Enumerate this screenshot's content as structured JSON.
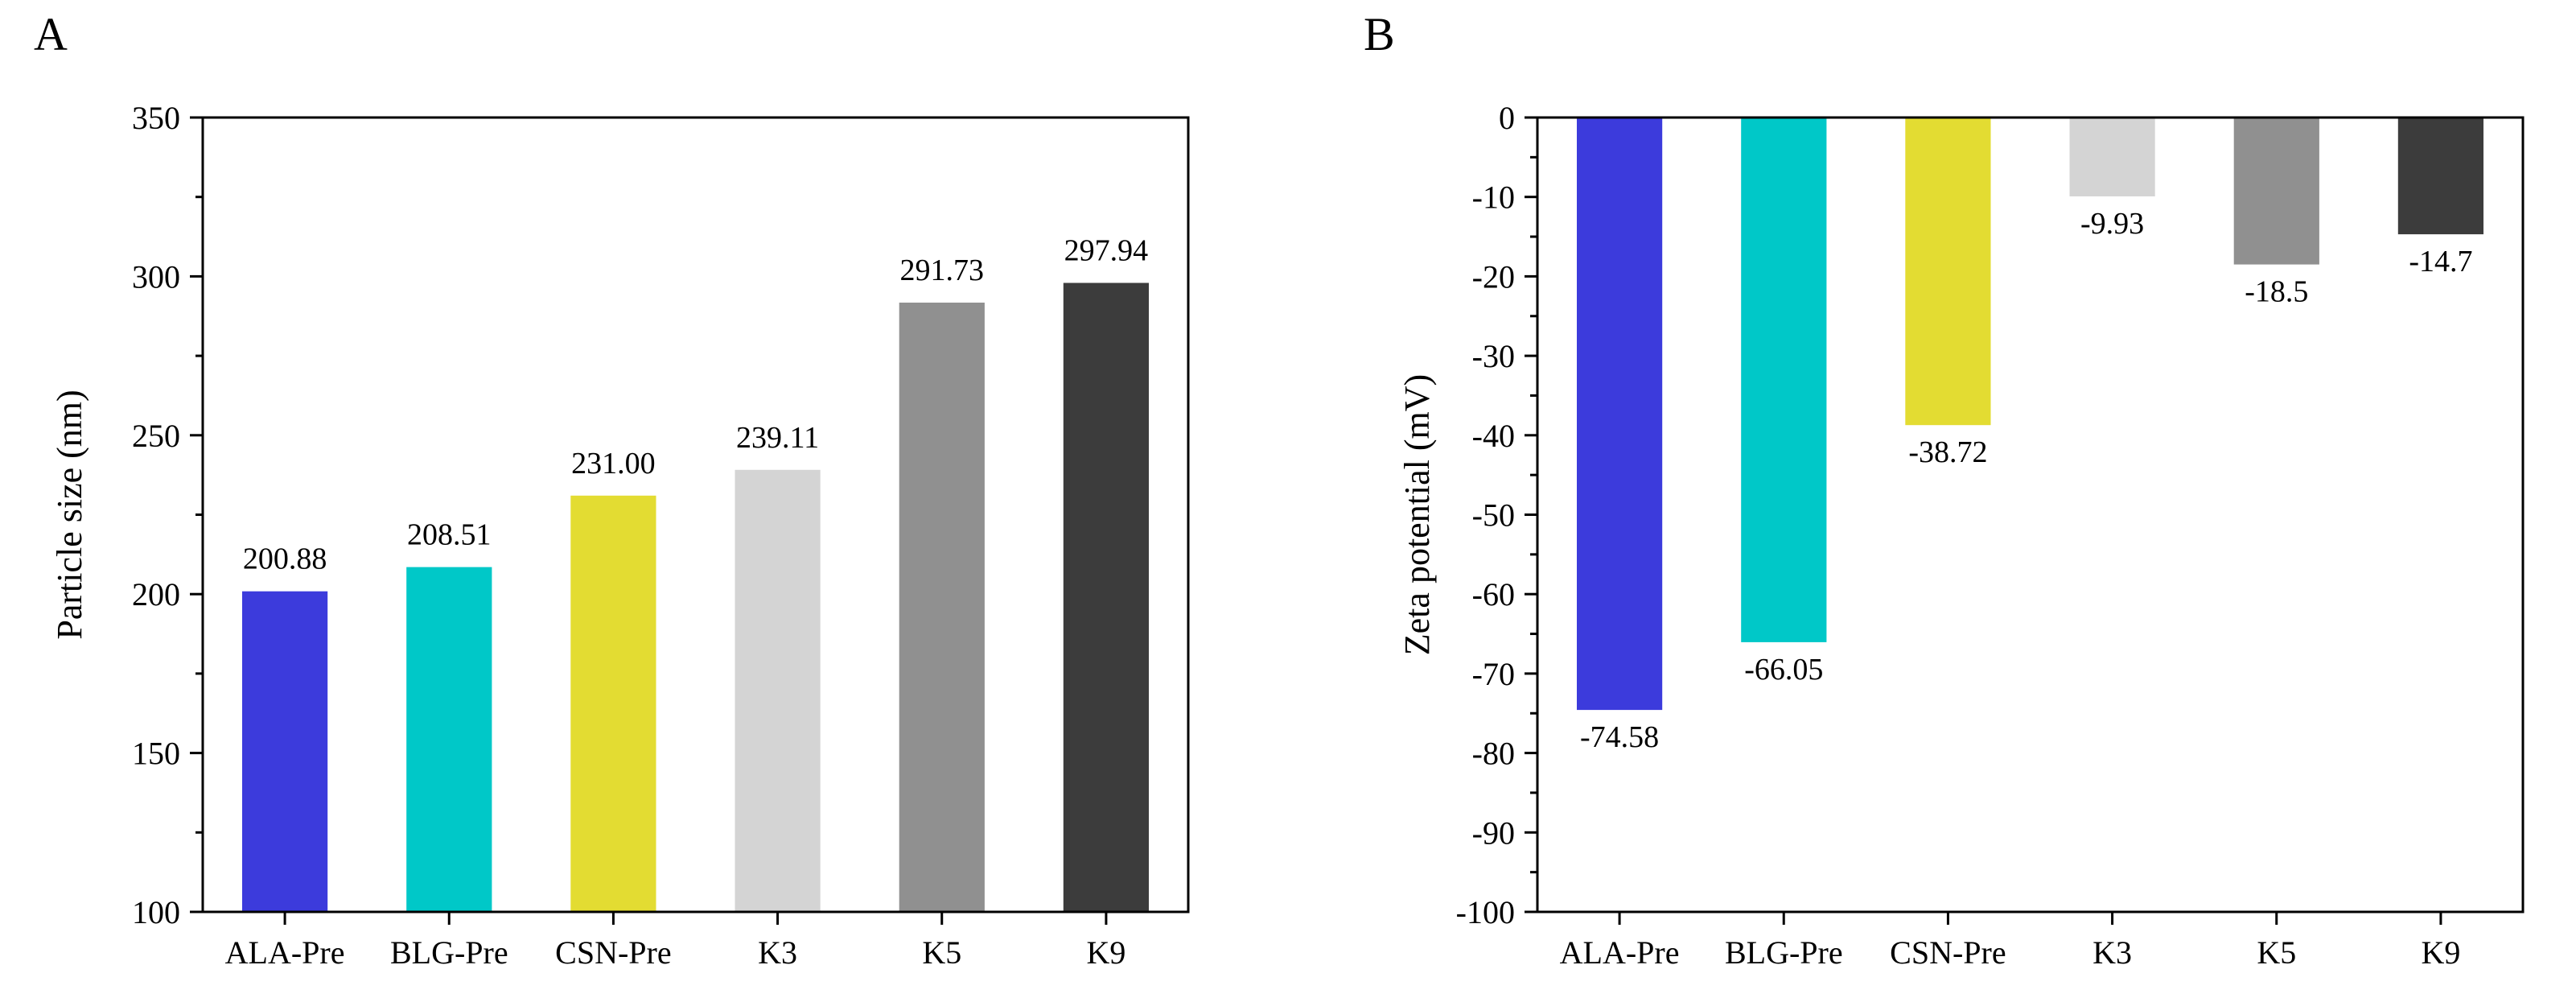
{
  "chart_data": [
    {
      "panel": "A",
      "type": "bar",
      "title": "",
      "xlabel": "",
      "ylabel": "Particle size (nm)",
      "ylim": [
        100,
        350
      ],
      "yticks": [
        100,
        150,
        200,
        250,
        300,
        350
      ],
      "categories": [
        "ALA-Pre",
        "BLG-Pre",
        "CSN-Pre",
        "K3",
        "K5",
        "K9"
      ],
      "values": [
        200.88,
        208.51,
        231.0,
        239.11,
        291.73,
        297.94
      ],
      "data_labels": [
        "200.88",
        "208.51",
        "231.00",
        "239.11",
        "291.73",
        "297.94"
      ],
      "colors": [
        "#3c3bdc",
        "#00c8c8",
        "#e3dc32",
        "#d4d4d4",
        "#909090",
        "#3c3c3c"
      ],
      "grid": false,
      "legend": "none"
    },
    {
      "panel": "B",
      "type": "bar",
      "title": "",
      "xlabel": "",
      "ylabel": "Zeta potential (mV)",
      "ylim": [
        -100,
        0
      ],
      "yticks": [
        0,
        -10,
        -20,
        -30,
        -40,
        -50,
        -60,
        -70,
        -80,
        -90,
        -100
      ],
      "categories": [
        "ALA-Pre",
        "BLG-Pre",
        "CSN-Pre",
        "K3",
        "K5",
        "K9"
      ],
      "values": [
        -74.58,
        -66.05,
        -38.72,
        -9.93,
        -18.5,
        -14.7
      ],
      "data_labels": [
        "-74.58",
        "-66.05",
        "-38.72",
        "-9.93",
        "-18.5",
        "-14.7"
      ],
      "colors": [
        "#3c3bdc",
        "#00c8c8",
        "#e3dc32",
        "#d4d4d4",
        "#909090",
        "#3c3c3c"
      ],
      "grid": false,
      "legend": "none"
    }
  ]
}
